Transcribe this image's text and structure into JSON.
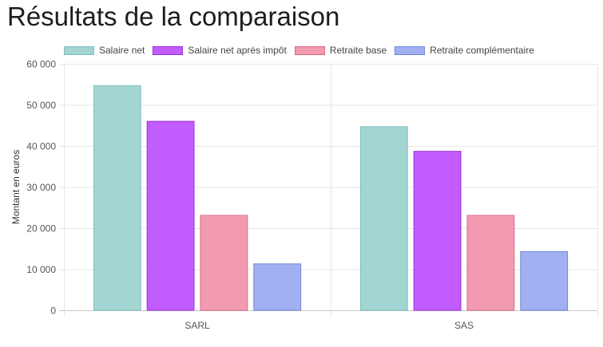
{
  "page": {
    "title": "Résultats de la comparaison"
  },
  "chart_data": {
    "type": "bar",
    "title": "",
    "xlabel": "",
    "ylabel": "Montant en euros",
    "categories": [
      "SARL",
      "SAS"
    ],
    "ylim": [
      0,
      60000
    ],
    "yticks": [
      0,
      10000,
      20000,
      30000,
      40000,
      50000,
      60000
    ],
    "ytick_labels": [
      "0",
      "10 000",
      "20 000",
      "30 000",
      "40 000",
      "50 000",
      "60 000"
    ],
    "grid": true,
    "legend_position": "top",
    "series": [
      {
        "name": "Salaire net",
        "values": [
          54700,
          44700
        ],
        "fill": "#a3d5d3",
        "stroke": "#7fc0bd"
      },
      {
        "name": "Salaire net après impôt",
        "values": [
          46000,
          38700
        ],
        "fill": "#c25cff",
        "stroke": "#9a2fd8"
      },
      {
        "name": "Retraite base",
        "values": [
          23100,
          23100
        ],
        "fill": "#f29bb0",
        "stroke": "#d96a86"
      },
      {
        "name": "Retraite complémentaire",
        "values": [
          11300,
          14300
        ],
        "fill": "#a1b0f0",
        "stroke": "#7185d8"
      }
    ]
  }
}
